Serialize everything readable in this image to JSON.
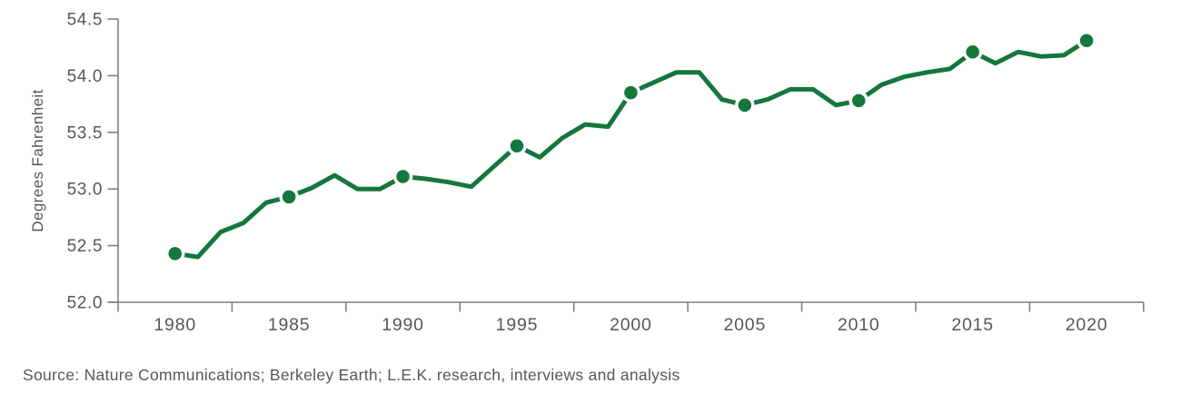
{
  "source_note": "Source: Nature Communications; Berkeley Earth; L.E.K. research, interviews and analysis",
  "chart_data": {
    "type": "line",
    "title": "",
    "xlabel": "",
    "ylabel": "Degrees Fahrenheit",
    "x": [
      1980,
      1981,
      1982,
      1983,
      1984,
      1985,
      1986,
      1987,
      1988,
      1989,
      1990,
      1991,
      1992,
      1993,
      1994,
      1995,
      1996,
      1997,
      1998,
      1999,
      2000,
      2001,
      2002,
      2003,
      2004,
      2005,
      2006,
      2007,
      2008,
      2009,
      2010,
      2011,
      2012,
      2013,
      2014,
      2015,
      2016,
      2017,
      2018,
      2019,
      2020
    ],
    "values": [
      52.43,
      52.4,
      52.62,
      52.7,
      52.88,
      52.93,
      53.01,
      53.12,
      53.0,
      53.0,
      53.11,
      53.09,
      53.06,
      53.02,
      53.2,
      53.38,
      53.28,
      53.45,
      53.57,
      53.55,
      53.85,
      53.94,
      54.03,
      54.03,
      53.79,
      53.74,
      53.79,
      53.88,
      53.88,
      53.74,
      53.78,
      53.92,
      53.99,
      54.03,
      54.06,
      54.21,
      54.11,
      54.21,
      54.17,
      54.18,
      54.31
    ],
    "marker_years": [
      1980,
      1985,
      1990,
      1995,
      2000,
      2005,
      2010,
      2015,
      2020
    ],
    "x_tick_labels": [
      "1980",
      "1985",
      "1990",
      "1995",
      "2000",
      "2005",
      "2010",
      "2015",
      "2020"
    ],
    "x_label_years": [
      1980,
      1985,
      1990,
      1995,
      2000,
      2005,
      2010,
      2015,
      2020
    ],
    "x_group_boundary_ticks": [
      1982.5,
      1987.5,
      1992.5,
      1997.5,
      2002.5,
      2007.5,
      2012.5,
      2017.5,
      2022.5
    ],
    "y_ticks": [
      52.0,
      52.5,
      53.0,
      53.5,
      54.0,
      54.5
    ],
    "y_tick_labels": [
      "52.0",
      "52.5",
      "53.0",
      "53.5",
      "54.0",
      "54.5"
    ],
    "ylim": [
      52.0,
      54.5
    ],
    "xlim": [
      1977.5,
      2022.5
    ],
    "grid": false,
    "legend": "none",
    "line_color": "#15763E",
    "marker_halo_color": "#ffffff",
    "axis_color": "#7d8084",
    "text_color": "#55575b"
  }
}
